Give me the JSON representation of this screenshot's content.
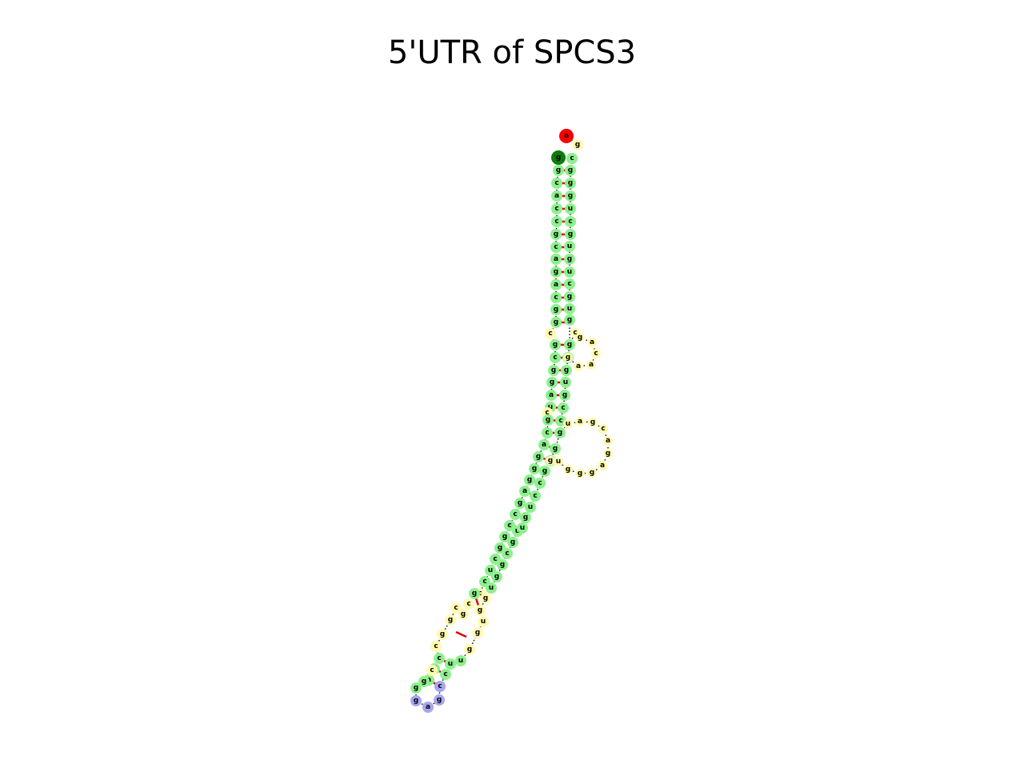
{
  "title": "5'UTR of SPCS3",
  "colors": {
    "stem": "#8ef08e",
    "loop": "#fffab0",
    "hairpin": "#a6a6f2",
    "start": "#f80000",
    "end": "#0a7d0a",
    "pair_bond": "#e00000",
    "backbone": "#000000"
  },
  "structure": {
    "start_base": "a",
    "end_base": "g",
    "left_strand": [
      "g",
      "c",
      "a",
      "c",
      "c",
      "g",
      "c",
      "a",
      "g",
      "a",
      "c",
      "g",
      "g",
      "c",
      "g",
      "c",
      "g",
      "g",
      "a",
      "u",
      "c",
      "g",
      "c",
      "a",
      "g",
      "g",
      "g",
      "a",
      "g",
      "c",
      "c",
      "g",
      "g",
      "c",
      "u",
      "c",
      "c",
      "g",
      "c",
      "g",
      "c",
      "g",
      "g",
      "c",
      "c",
      "g",
      "a",
      "c",
      "g",
      "g"
    ],
    "hairpin_loop": [
      "g",
      "a",
      "g",
      "c"
    ],
    "right_strand": [
      "c",
      "u",
      "u",
      "g",
      "g",
      "u",
      "g",
      "g",
      "u",
      "g",
      "g",
      "c",
      "g",
      "u",
      "u",
      "g",
      "u",
      "c",
      "c",
      "g",
      "a",
      "g",
      "g",
      "c",
      "c",
      "g",
      "u",
      "g",
      "g",
      "g",
      "u",
      "g",
      "c",
      "g",
      "g",
      "a",
      "a",
      "g",
      "c",
      "c",
      "g",
      "u",
      "c",
      "g",
      "a",
      "c",
      "g",
      "g",
      "u",
      "c",
      "g",
      "g",
      "c",
      "c",
      "g",
      "u",
      "c",
      "g",
      "a",
      "c",
      "c",
      "g",
      "c",
      "c",
      "g",
      "u",
      "c",
      "c",
      "g"
    ]
  }
}
